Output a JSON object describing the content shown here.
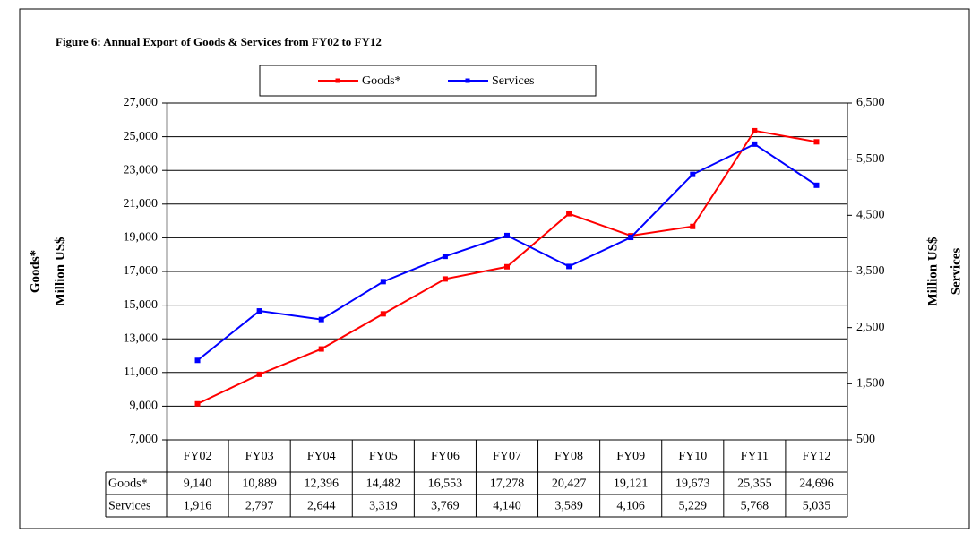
{
  "chart_data": {
    "type": "line",
    "title": "Figure 6: Annual Export of Goods & Services from FY02 to FY12",
    "ylabel": [
      "Goods*",
      "Million US$"
    ],
    "y2label": [
      "Million US$",
      "Services"
    ],
    "categories": [
      "FY02",
      "FY03",
      "FY04",
      "FY05",
      "FY06",
      "FY07",
      "FY08",
      "FY09",
      "FY10",
      "FY11",
      "FY12"
    ],
    "series": [
      {
        "name": "Goods*",
        "color": "#ff0000",
        "axis": "y",
        "values": [
          9140,
          10889,
          12396,
          14482,
          16553,
          17278,
          20427,
          19121,
          19673,
          25355,
          24696
        ],
        "value_labels": [
          "9,140",
          "10,889",
          "12,396",
          "14,482",
          "16,553",
          "17,278",
          "20,427",
          "19,121",
          "19,673",
          "25,355",
          "24,696"
        ]
      },
      {
        "name": "Services",
        "color": "#0000ff",
        "axis": "y2",
        "values": [
          1916,
          2797,
          2644,
          3319,
          3769,
          4140,
          3589,
          4106,
          5229,
          5768,
          5035
        ],
        "value_labels": [
          "1,916",
          "2,797",
          "2,644",
          "3,319",
          "3,769",
          "4,140",
          "3,589",
          "4,106",
          "5,229",
          "5,768",
          "5,035"
        ]
      }
    ],
    "ylim": [
      7000,
      27000
    ],
    "yticks": [
      {
        "value": 7000,
        "label": "7,000"
      },
      {
        "value": 9000,
        "label": "9,000"
      },
      {
        "value": 11000,
        "label": "11,000"
      },
      {
        "value": 13000,
        "label": "13,000"
      },
      {
        "value": 15000,
        "label": "15,000"
      },
      {
        "value": 17000,
        "label": "17,000"
      },
      {
        "value": 19000,
        "label": "19,000"
      },
      {
        "value": 21000,
        "label": "21,000"
      },
      {
        "value": 23000,
        "label": "23,000"
      },
      {
        "value": 25000,
        "label": "25,000"
      },
      {
        "value": 27000,
        "label": "27,000"
      }
    ],
    "y2lim": [
      500,
      6500
    ],
    "y2ticks": [
      500,
      {
        "value": 1500,
        "label": "1,500"
      },
      {
        "value": 2500,
        "label": "2,500"
      },
      {
        "value": 3500,
        "label": "3,500"
      },
      {
        "value": 4500,
        "label": "4,500"
      },
      {
        "value": 5500,
        "label": "5,500"
      },
      {
        "value": 6500,
        "label": "6,500"
      }
    ],
    "grid": true,
    "legend": "top"
  }
}
